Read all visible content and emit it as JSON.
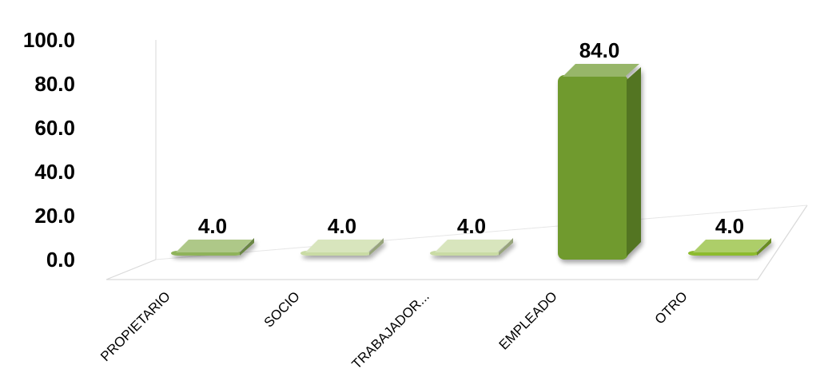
{
  "chart_data": {
    "type": "bar",
    "title": "",
    "xlabel": "",
    "ylabel": "",
    "categories": [
      "PROPIETARIO",
      "SOCIO",
      "TRABAJADOR...",
      "EMPLEADO",
      "OTRO"
    ],
    "values": [
      4.0,
      4.0,
      4.0,
      84.0,
      4.0
    ],
    "value_labels": [
      "4.0",
      "4.0",
      "4.0",
      "84.0",
      "4.0"
    ],
    "ylim": [
      0,
      100
    ],
    "yticks": [
      "0.0",
      "20.0",
      "40.0",
      "60.0",
      "80.0",
      "100.0"
    ],
    "grid": false,
    "legend": "none",
    "style": "3d-bar",
    "bar_colors": [
      "#8fb35a",
      "#c9dba4",
      "#c9dba4",
      "#6f9a2e",
      "#8dbb2e"
    ]
  }
}
